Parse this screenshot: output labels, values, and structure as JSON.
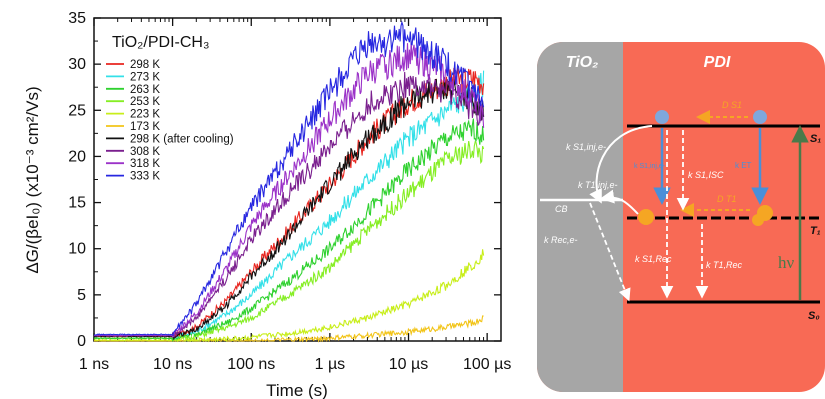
{
  "chart_data": {
    "type": "line",
    "title": "TiO₂/PDI-CH₃",
    "xlabel": "Time (s)",
    "ylabel": "ΔG/(βeI₀) (x10⁻³ cm²/Vs)",
    "xscale": "log",
    "xlim": [
      1e-09,
      0.00015
    ],
    "ylim": [
      0,
      35
    ],
    "x_tick_labels": [
      "1 ns",
      "10 ns",
      "100 ns",
      "1 µs",
      "10 µs",
      "100 µs"
    ],
    "x_tick_values": [
      1e-09,
      1e-08,
      1e-07,
      1e-06,
      1e-05,
      0.0001
    ],
    "y_ticks": [
      0,
      5,
      10,
      15,
      20,
      25,
      30,
      35
    ],
    "legend_position": "top-left",
    "series": [
      {
        "name": "298 K",
        "color": "#e8251f",
        "x": [
          1e-09,
          1e-08,
          2e-08,
          5e-08,
          1e-07,
          3e-07,
          1e-06,
          3e-06,
          1e-05,
          3e-05,
          7e-05,
          9e-05
        ],
        "y": [
          0.5,
          0.5,
          1.5,
          4.5,
          7.5,
          12,
          17,
          22,
          26,
          28,
          28.5,
          28
        ]
      },
      {
        "name": "273 K",
        "color": "#33e0e8",
        "x": [
          1e-09,
          1e-08,
          2e-08,
          5e-08,
          1e-07,
          3e-07,
          1e-06,
          3e-06,
          1e-05,
          3e-05,
          7e-05,
          9e-05
        ],
        "y": [
          0.5,
          0.5,
          1,
          3,
          5,
          9,
          13,
          17.5,
          22,
          25,
          27,
          28
        ]
      },
      {
        "name": "263 K",
        "color": "#2fd12f",
        "x": [
          1e-09,
          1e-08,
          2e-08,
          5e-08,
          1e-07,
          3e-07,
          1e-06,
          3e-06,
          1e-05,
          3e-05,
          7e-05,
          9e-05
        ],
        "y": [
          0.3,
          0.3,
          0.8,
          2,
          3.5,
          6.5,
          10,
          14,
          18.5,
          22,
          23,
          22
        ]
      },
      {
        "name": "253 K",
        "color": "#86ee24",
        "x": [
          1e-09,
          1e-08,
          2e-08,
          5e-08,
          1e-07,
          3e-07,
          1e-06,
          3e-06,
          1e-05,
          3e-05,
          7e-05,
          9e-05
        ],
        "y": [
          0.3,
          0.3,
          0.5,
          1.5,
          2.5,
          5,
          8,
          12,
          16,
          19.5,
          21,
          20
        ]
      },
      {
        "name": "223 K",
        "color": "#c8ee1a",
        "x": [
          1e-09,
          1e-08,
          2e-08,
          5e-08,
          1e-07,
          3e-07,
          1e-06,
          3e-06,
          1e-05,
          3e-05,
          7e-05,
          9e-05
        ],
        "y": [
          0.1,
          0.1,
          0.1,
          0.2,
          0.4,
          0.8,
          1.5,
          2.5,
          4,
          6,
          8.5,
          9.5
        ]
      },
      {
        "name": "173 K",
        "color": "#f2c418",
        "x": [
          1e-09,
          1e-08,
          2e-08,
          5e-08,
          1e-07,
          3e-07,
          1e-06,
          3e-06,
          1e-05,
          3e-05,
          7e-05,
          9e-05
        ],
        "y": [
          0,
          0,
          0,
          0,
          0,
          0.1,
          0.3,
          0.6,
          1,
          1.5,
          2,
          2.5
        ]
      },
      {
        "name": "298 K (after cooling)",
        "color": "#111111",
        "x": [
          1e-09,
          1e-08,
          2e-08,
          5e-08,
          1e-07,
          3e-07,
          1e-06,
          3e-06,
          1e-05,
          3e-05,
          7e-05,
          9e-05
        ],
        "y": [
          0.5,
          0.5,
          1.2,
          4,
          7,
          11.5,
          17,
          22,
          26,
          27.5,
          26,
          25
        ]
      },
      {
        "name": "308 K",
        "color": "#7a1f8e",
        "x": [
          1e-09,
          1e-08,
          2e-08,
          5e-08,
          1e-07,
          3e-07,
          1e-06,
          3e-06,
          1e-05,
          3e-05,
          7e-05,
          9e-05
        ],
        "y": [
          0.6,
          0.6,
          2.5,
          7,
          11,
          16,
          21,
          25.5,
          28,
          27,
          25,
          24
        ]
      },
      {
        "name": "318 K",
        "color": "#9b32c8",
        "x": [
          1e-09,
          1e-08,
          2e-08,
          5e-08,
          1e-07,
          3e-07,
          1e-06,
          3e-06,
          1e-05,
          3e-05,
          7e-05,
          9e-05
        ],
        "y": [
          0.6,
          0.6,
          3,
          8,
          12.5,
          18,
          24,
          29,
          31,
          29,
          26,
          24
        ]
      },
      {
        "name": "333 K",
        "color": "#2727e0",
        "x": [
          1e-09,
          1e-08,
          2e-08,
          5e-08,
          1e-07,
          3e-07,
          1e-06,
          3e-06,
          1e-05,
          3e-05,
          7e-05,
          9e-05
        ],
        "y": [
          0.7,
          0.7,
          4,
          10,
          14.5,
          20.5,
          27,
          32,
          33,
          30,
          27,
          25
        ]
      }
    ]
  },
  "diagram": {
    "left_region": "TiO₂",
    "right_region": "PDI",
    "levels": [
      "S₁",
      "T₁",
      "S₀",
      "CB"
    ],
    "labels": {
      "k_s1_inj": "k S1,inj,e-",
      "k_t1_inj": "k T1,inj,e-",
      "k_s1_isc": "k S1,ISC",
      "k_rec": "k Rec,e-",
      "k_s1_rec": "k S1,Rec",
      "k_t1_rec": "k T1,Rec",
      "d_s1": "D S1",
      "d_t1": "D T1",
      "hv": "hν",
      "k_s1_inj_blue": "k S1,inj,e-",
      "k_et": "k ET"
    },
    "colors": {
      "pdi": "#f86a55",
      "tio2": "#a6a6a6",
      "diffusion_arrow": "#f5a623",
      "exciton": "#7fa7dc",
      "triplet": "#f5a623"
    }
  }
}
